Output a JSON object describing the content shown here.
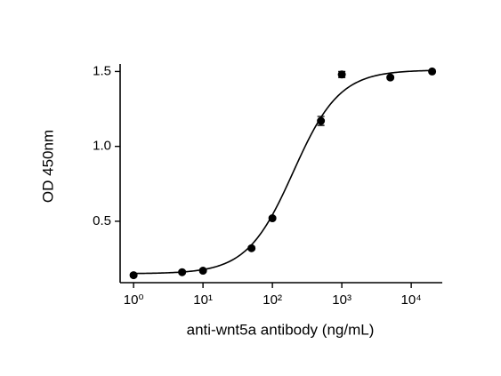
{
  "chart_data": {
    "type": "scatter",
    "x_label": "anti-wnt5a antibody (ng/mL)",
    "y_label": "OD 450nm",
    "x": [
      1,
      5,
      10,
      50,
      100,
      500,
      1000,
      5000,
      20000
    ],
    "values": [
      0.14,
      0.16,
      0.17,
      0.32,
      0.52,
      1.17,
      1.48,
      1.46,
      1.5
    ],
    "errors": [
      0.01,
      0.01,
      0.01,
      0.01,
      0.01,
      0.03,
      0.02,
      0.01,
      0.01
    ],
    "color": "#000000",
    "fit": {
      "bottom": 0.15,
      "top": 1.51,
      "ec50": 200,
      "hill": 1.3
    },
    "xscale": "log",
    "xlim": [
      0.64,
      28000
    ],
    "ylim": [
      0.09,
      1.55
    ],
    "xticks": [
      {
        "value": 1,
        "label": "10⁰"
      },
      {
        "value": 10,
        "label": "10¹"
      },
      {
        "value": 100,
        "label": "10²"
      },
      {
        "value": 1000,
        "label": "10³"
      },
      {
        "value": 10000,
        "label": "10⁴"
      }
    ],
    "yticks": [
      {
        "value": 0.5,
        "label": "0.5"
      },
      {
        "value": 1,
        "label": "1.0"
      },
      {
        "value": 1.5,
        "label": "1.5"
      }
    ]
  }
}
